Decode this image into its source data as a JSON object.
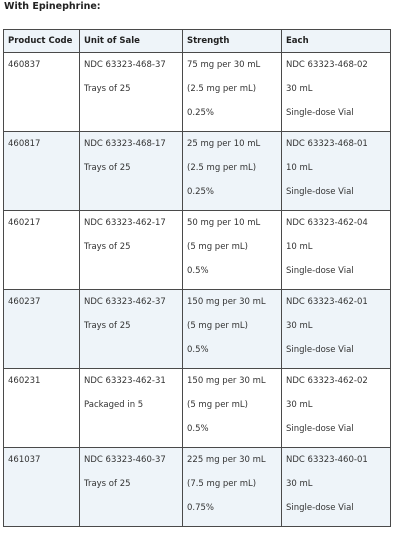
{
  "heading": "With Epinephrine:",
  "table": {
    "headers": [
      "Product Code",
      "Unit of Sale",
      "Strength",
      "Each"
    ],
    "rows": [
      {
        "product_code": "460837",
        "unit_of_sale": [
          "NDC 63323-468-37",
          "Trays of 25"
        ],
        "strength": [
          "75 mg per 30 mL",
          "(2.5 mg per mL)",
          "0.25%"
        ],
        "each": [
          "NDC 63323-468-02",
          "30 mL",
          "Single-dose Vial"
        ]
      },
      {
        "product_code": "460817",
        "unit_of_sale": [
          "NDC 63323-468-17",
          "Trays of 25"
        ],
        "strength": [
          "25 mg per 10 mL",
          "(2.5 mg per mL)",
          "0.25%"
        ],
        "each": [
          "NDC 63323-468-01",
          "10 mL",
          "Single-dose Vial"
        ]
      },
      {
        "product_code": "460217",
        "unit_of_sale": [
          "NDC 63323-462-17",
          "Trays of 25"
        ],
        "strength": [
          "50 mg per 10 mL",
          "(5 mg per mL)",
          "0.5%"
        ],
        "each": [
          "NDC 63323-462-04",
          "10 mL",
          "Single-dose Vial"
        ]
      },
      {
        "product_code": "460237",
        "unit_of_sale": [
          "NDC 63323-462-37",
          "Trays of 25"
        ],
        "strength": [
          "150 mg per 30 mL",
          "(5 mg per mL)",
          "0.5%"
        ],
        "each": [
          "NDC 63323-462-01",
          "30 mL",
          "Single-dose Vial"
        ]
      },
      {
        "product_code": "460231",
        "unit_of_sale": [
          "NDC 63323-462-31",
          "Packaged in 5"
        ],
        "strength": [
          "150 mg per 30 mL",
          "(5 mg per mL)",
          "0.5%"
        ],
        "each": [
          "NDC 63323-462-02",
          "30 mL",
          "Single-dose Vial"
        ]
      },
      {
        "product_code": "461037",
        "unit_of_sale": [
          "NDC 63323-460-37",
          "Trays of 25"
        ],
        "strength": [
          "225 mg per 30 mL",
          "(7.5 mg per mL)",
          "0.75%"
        ],
        "each": [
          "NDC 63323-460-01",
          "30 mL",
          "Single-dose Vial"
        ]
      }
    ]
  },
  "colors": {
    "header_bg": "#eef4f9",
    "alt_row_bg": "#eef4f9",
    "border": "#4a4a4a"
  }
}
